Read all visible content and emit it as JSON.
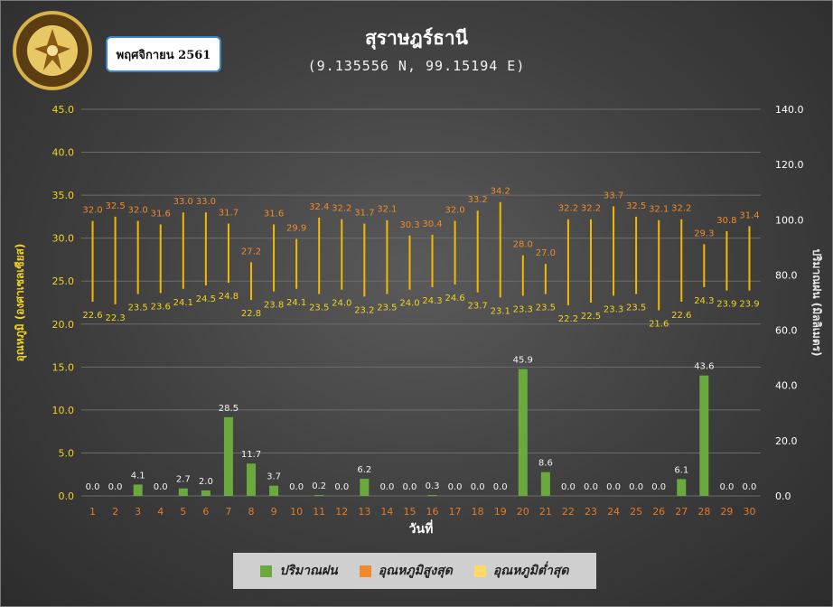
{
  "header": {
    "title": "สุราษฎร์ธานี",
    "subtitle": "(9.135556 N, 99.15194 E)",
    "month": "พฤศจิกายน 2561",
    "logo_text": "กรมอุตุนิยมวิทยา METEOROLOGICAL DEPARTMENT"
  },
  "legend": {
    "rain": "ปริมาณฝน",
    "tmax": "อุณหภูมิสูงสุด",
    "tmin": "อุณหภูมิต่ำสุด"
  },
  "colors": {
    "rain": "#6aaa3c",
    "tmax_label": "#f08a2a",
    "tmin_label": "#f2d21e",
    "range_line": "#f5b800",
    "left_axis": "#f2d21e",
    "right_axis": "#ffffff",
    "xtick": "#e07b2a"
  },
  "chart_data": {
    "type": "bar",
    "xlabel": "วันที่",
    "ylabel_left": "อุณหภูมิ (องศาเซลเซียส)",
    "ylabel_right": "ปริมาณฝน (มิลลิเมตร)",
    "ylim_left": [
      0,
      45
    ],
    "ylim_right": [
      0,
      140
    ],
    "yticks_left": [
      "0.0",
      "5.0",
      "10.0",
      "15.0",
      "20.0",
      "25.0",
      "30.0",
      "35.0",
      "40.0",
      "45.0"
    ],
    "yticks_right": [
      "0.0",
      "20.0",
      "40.0",
      "60.0",
      "80.0",
      "100.0",
      "120.0",
      "140.0"
    ],
    "categories": [
      "1",
      "2",
      "3",
      "4",
      "5",
      "6",
      "7",
      "8",
      "9",
      "10",
      "11",
      "12",
      "13",
      "14",
      "15",
      "16",
      "17",
      "18",
      "19",
      "20",
      "21",
      "22",
      "23",
      "24",
      "25",
      "26",
      "27",
      "28",
      "29",
      "30"
    ],
    "series": [
      {
        "name": "ปริมาณฝน",
        "axis": "right",
        "type": "bar",
        "values": [
          0.0,
          0.0,
          4.1,
          0.0,
          2.7,
          2.0,
          28.5,
          11.7,
          3.7,
          0.0,
          0.2,
          0.0,
          6.2,
          0.0,
          0.0,
          0.3,
          0.0,
          0.0,
          0.0,
          45.9,
          8.6,
          0.0,
          0.0,
          0.0,
          0.0,
          0.0,
          6.1,
          43.6,
          0.0,
          0.0
        ]
      },
      {
        "name": "อุณหภูมิสูงสุด",
        "axis": "left",
        "type": "range-high",
        "values": [
          32.0,
          32.5,
          32.0,
          31.6,
          33.0,
          33.0,
          31.7,
          27.2,
          31.6,
          29.9,
          32.4,
          32.2,
          31.7,
          32.1,
          30.3,
          30.4,
          32.0,
          33.2,
          34.2,
          28.0,
          27.0,
          32.2,
          32.2,
          33.7,
          32.5,
          32.1,
          32.2,
          29.3,
          30.8,
          31.4
        ]
      },
      {
        "name": "อุณหภูมิต่ำสุด",
        "axis": "left",
        "type": "range-low",
        "values": [
          22.6,
          22.3,
          23.5,
          23.6,
          24.1,
          24.5,
          24.8,
          22.8,
          23.8,
          24.1,
          23.5,
          24.0,
          23.2,
          23.5,
          24.0,
          24.3,
          24.6,
          23.7,
          23.1,
          23.3,
          23.5,
          22.2,
          22.5,
          23.3,
          23.5,
          21.6,
          22.6,
          24.3,
          23.9,
          23.9
        ]
      }
    ]
  }
}
